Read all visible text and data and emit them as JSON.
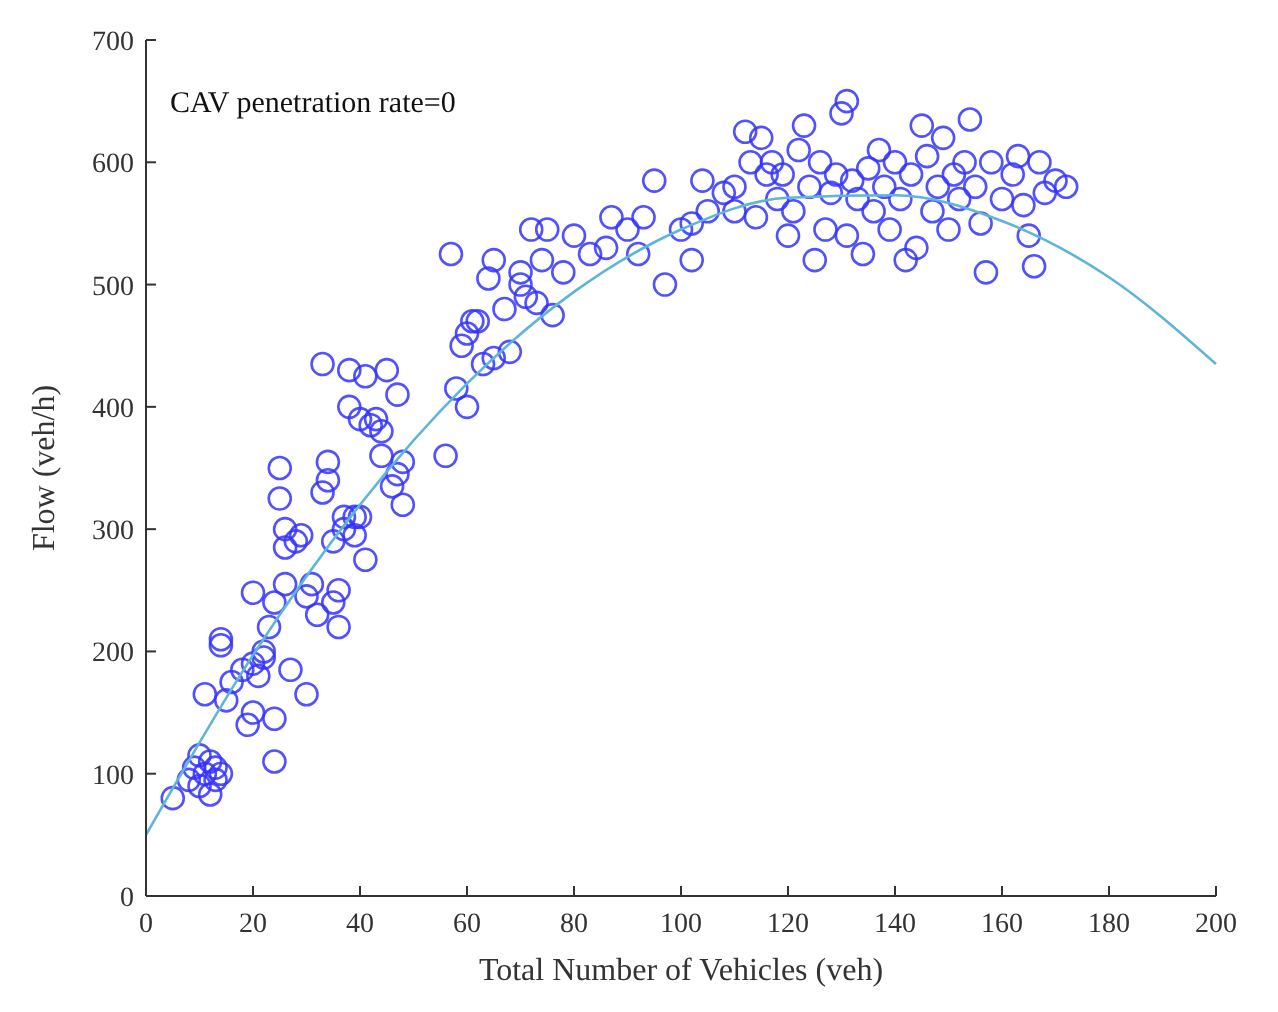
{
  "chart_data": {
    "type": "scatter",
    "xlabel": "Total Number of Vehicles (veh)",
    "ylabel": "Flow (veh/h)",
    "annotations": [
      "CAV penetration rate=0"
    ],
    "xlim": [
      0,
      200
    ],
    "ylim": [
      0,
      700
    ],
    "xticks": [
      0,
      20,
      40,
      60,
      80,
      100,
      120,
      140,
      160,
      180,
      200
    ],
    "yticks": [
      0,
      100,
      200,
      300,
      400,
      500,
      600,
      700
    ],
    "grid": false,
    "series": [
      {
        "marker": "circle",
        "color": "#3333ff",
        "x": [
          5,
          8,
          9,
          10,
          10,
          11,
          12,
          12,
          13,
          13,
          14,
          11,
          14,
          14,
          15,
          16,
          18,
          19,
          20,
          20,
          20,
          21,
          22,
          22,
          23,
          24,
          24,
          24,
          25,
          25,
          26,
          26,
          26,
          27,
          28,
          29,
          30,
          30,
          31,
          32,
          33,
          33,
          34,
          34,
          35,
          35,
          36,
          36,
          37,
          37,
          38,
          38,
          39,
          39,
          40,
          40,
          41,
          41,
          42,
          43,
          44,
          44,
          45,
          46,
          47,
          47,
          48,
          48,
          56,
          57,
          58,
          59,
          60,
          60,
          61,
          62,
          63,
          64,
          65,
          65,
          67,
          68,
          70,
          70,
          71,
          72,
          73,
          74,
          75,
          76,
          78,
          80,
          83,
          86,
          87,
          90,
          92,
          93,
          95,
          97,
          100,
          102,
          102,
          104,
          105,
          108,
          110,
          110,
          112,
          113,
          114,
          115,
          116,
          117,
          118,
          119,
          120,
          121,
          122,
          123,
          124,
          125,
          126,
          127,
          128,
          129,
          130,
          131,
          131,
          132,
          133,
          134,
          135,
          136,
          137,
          138,
          139,
          140,
          141,
          142,
          143,
          144,
          145,
          146,
          147,
          148,
          149,
          150,
          151,
          152,
          153,
          154,
          155,
          156,
          157,
          158,
          160,
          162,
          163,
          164,
          165,
          166,
          167,
          168,
          170,
          172
        ],
        "values": [
          80,
          95,
          105,
          115,
          90,
          100,
          83,
          110,
          95,
          105,
          100,
          165,
          205,
          210,
          160,
          175,
          185,
          140,
          150,
          190,
          248,
          180,
          195,
          200,
          220,
          145,
          110,
          240,
          350,
          325,
          285,
          255,
          300,
          185,
          290,
          295,
          165,
          245,
          255,
          230,
          330,
          435,
          340,
          355,
          290,
          240,
          250,
          220,
          300,
          310,
          400,
          430,
          310,
          295,
          310,
          390,
          275,
          425,
          385,
          390,
          380,
          360,
          430,
          335,
          345,
          410,
          320,
          355,
          360,
          525,
          415,
          450,
          400,
          460,
          470,
          470,
          435,
          505,
          520,
          440,
          480,
          445,
          500,
          510,
          490,
          545,
          485,
          520,
          545,
          475,
          510,
          540,
          525,
          530,
          555,
          545,
          525,
          555,
          585,
          500,
          545,
          550,
          520,
          585,
          560,
          575,
          560,
          580,
          625,
          600,
          555,
          620,
          590,
          600,
          570,
          590,
          540,
          560,
          610,
          630,
          580,
          520,
          600,
          545,
          575,
          590,
          640,
          650,
          540,
          585,
          570,
          525,
          595,
          560,
          610,
          580,
          545,
          600,
          570,
          520,
          590,
          530,
          630,
          605,
          560,
          580,
          620,
          545,
          590,
          570,
          600,
          635,
          580,
          550,
          510,
          600,
          570,
          590,
          605,
          565,
          540,
          515,
          600,
          575,
          585,
          580
        ]
      },
      {
        "type": "line",
        "color": "#5fb4d9",
        "line_style": "solid",
        "x": [
          0,
          20,
          40,
          60,
          80,
          100,
          120,
          140,
          160,
          180,
          200
        ],
        "values": [
          50,
          197,
          320,
          419,
          494,
          545,
          571,
          573,
          552,
          506,
          435
        ]
      }
    ]
  }
}
